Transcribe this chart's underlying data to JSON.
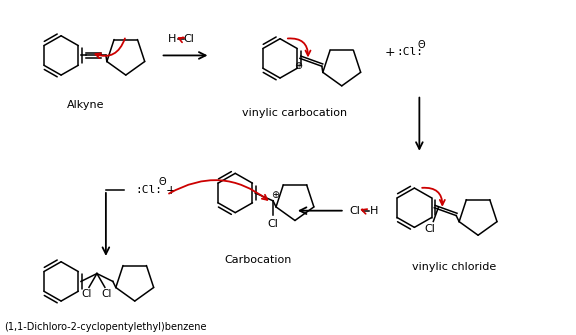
{
  "bg_color": "#ffffff",
  "text_color": "#000000",
  "arrow_color": "#cc0000",
  "black_arrow_color": "#000000",
  "labels": {
    "alkyne": "Alkyne",
    "vinylic_carbocation": "vinylic carbocation",
    "vinylic_chloride": "vinylic chloride",
    "carbocation": "Carbocation",
    "product": "(1,1-Dichloro-2-cyclopentylethyl)benzene"
  },
  "figsize": [
    5.76,
    3.35
  ],
  "dpi": 100
}
